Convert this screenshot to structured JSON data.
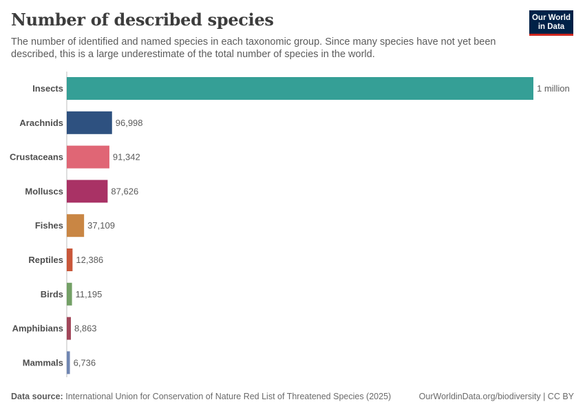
{
  "header": {
    "title": "Number of described species",
    "subtitle": "The number of identified and named species in each taxonomic group. Since many species have not yet been described, this is a large underestimate of the total number of species in the world."
  },
  "logo": {
    "line1": "Our World",
    "line2": "in Data"
  },
  "footer": {
    "source_label": "Data source:",
    "source_text": "International Union for Conservation of Nature Red List of Threatened Species (2025)",
    "right_text": "OurWorldinData.org/biodiversity | CC BY"
  },
  "chart_data": {
    "type": "bar",
    "orientation": "horizontal",
    "categories": [
      "Insects",
      "Arachnids",
      "Crustaceans",
      "Molluscs",
      "Fishes",
      "Reptiles",
      "Birds",
      "Amphibians",
      "Mammals"
    ],
    "values": [
      1000000,
      96998,
      91342,
      87626,
      37109,
      12386,
      11195,
      8863,
      6736
    ],
    "value_labels": [
      "1 million",
      "96,998",
      "91,342",
      "87,626",
      "37,109",
      "12,386",
      "11,195",
      "8,863",
      "6,736"
    ],
    "colors": [
      "#359f96",
      "#2e5180",
      "#e06675",
      "#a93265",
      "#c98644",
      "#c9573a",
      "#73a066",
      "#a2475a",
      "#7086b2"
    ],
    "xlim": [
      0,
      1000000
    ],
    "grid": false
  }
}
